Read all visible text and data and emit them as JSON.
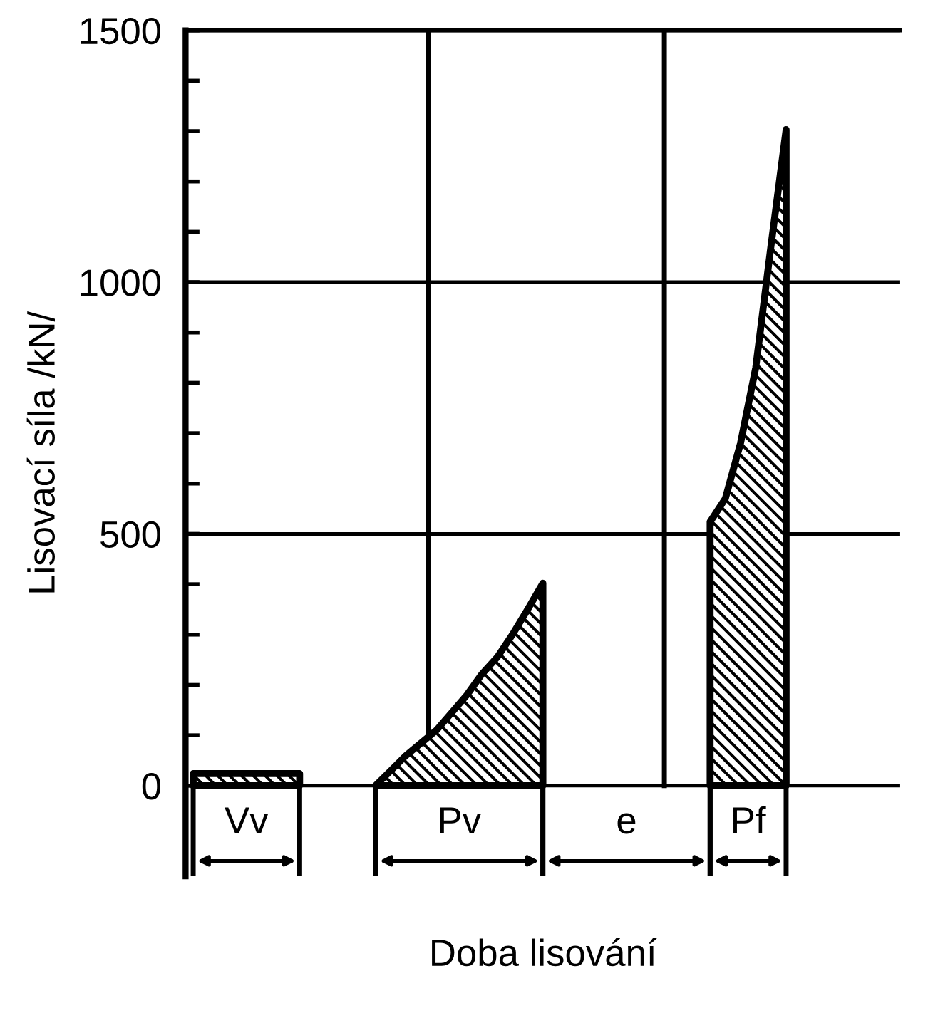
{
  "chart_data": {
    "type": "area",
    "xlabel": "Doba lisování",
    "ylabel": "Lisovací síla /kN/",
    "categories": [
      null,
      null,
      null,
      null,
      null,
      null,
      null,
      null,
      null,
      null,
      null,
      null,
      null,
      null,
      null,
      null,
      null,
      null,
      null,
      null,
      null,
      null,
      null,
      null,
      null,
      null,
      null,
      null,
      null,
      null,
      null,
      null,
      null,
      null,
      null,
      null,
      null,
      null,
      null,
      null,
      null,
      null,
      null,
      null,
      null,
      null,
      null
    ],
    "ylim": [
      -180,
      1500
    ],
    "yticks": [
      0,
      {
        "value": 100,
        "label": null
      },
      {
        "value": 200,
        "label": null
      },
      {
        "value": 300,
        "label": null
      },
      {
        "value": 400,
        "label": null
      },
      500,
      {
        "value": 600,
        "label": null
      },
      {
        "value": 700,
        "label": null
      },
      {
        "value": 800,
        "label": null
      },
      {
        "value": 900,
        "label": null
      },
      1000,
      {
        "value": 1100,
        "label": null
      },
      {
        "value": 1200,
        "label": null
      },
      {
        "value": 1300,
        "label": null
      },
      {
        "value": 1400,
        "label": null
      },
      1500
    ],
    "tick_labels": "y",
    "grid": "y",
    "legend": false,
    "series": [
      {
        "color": "#000000",
        "values": [
          24,
          24,
          24,
          24,
          24,
          24,
          24,
          24,
          null,
          null,
          null,
          null,
          0,
          30,
          60,
          85,
          110,
          145,
          180,
          222,
          255,
          300,
          350,
          402,
          null,
          null,
          null,
          null,
          null,
          null,
          null,
          null,
          null,
          null,
          524,
          570,
          680,
          830,
          1071,
          1303,
          null,
          null,
          null,
          null,
          null,
          null,
          null
        ]
      }
    ],
    "annotations": [
      "Vv",
      "Pv",
      "e",
      "Pf"
    ]
  }
}
